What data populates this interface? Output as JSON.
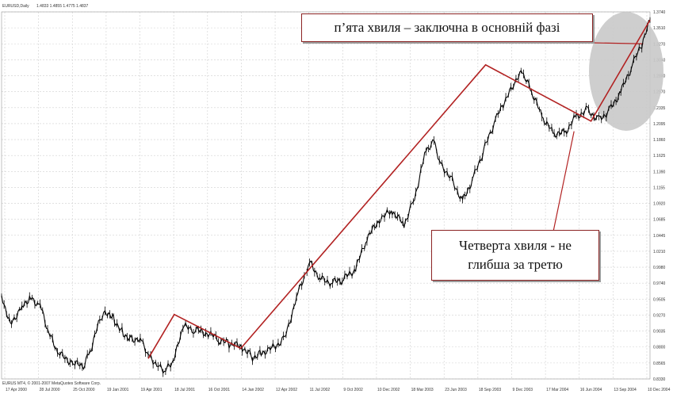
{
  "header": {
    "symbol": "EURUSD,Daily",
    "ohlc": "1.4833 1.4855 1.4775 1.4837"
  },
  "footer": {
    "copyright": "EURUS MT4, © 2001-2007 MetaQuotes Software Corp."
  },
  "annotations": {
    "wave5": "п’ята хвиля – заключна в основній фазі",
    "wave4_line1": "Четверта хвиля - не",
    "wave4_line2": "глибша за третю"
  },
  "colors": {
    "background": "#ffffff",
    "grid": "#d0d0d0",
    "price": "#000000",
    "wave_lines": "#b22222",
    "highlight_ellipse": "#c9c9c9"
  },
  "chart_data": {
    "type": "line",
    "title": "EURUSD,Daily",
    "xlabel": "",
    "ylabel": "",
    "x_tick_labels": [
      "17 Apr 2000",
      "28 Jul 2000",
      "25 Oct 2000",
      "19 Jan 2001",
      "19 Apr 2001",
      "18 Jul 2001",
      "16 Oct 2001",
      "14 Jan 2002",
      "12 Apr 2002",
      "11 Jul 2002",
      "9 Oct 2002",
      "10 Dec 2002",
      "18 Mar 2003",
      "23 Jun 2003",
      "18 Sep 2003",
      "9 Dec 2003",
      "17 Mar 2004",
      "16 Jun 2004",
      "13 Sep 2004",
      "10 Dec 2004"
    ],
    "y_tick_labels": [
      "1.3740",
      "1.3510",
      "1.3270",
      "1.3040",
      "1.2800",
      "1.2570",
      "1.2335",
      "1.2095",
      "1.1860",
      "1.1625",
      "1.1390",
      "1.1155",
      "1.0920",
      "1.0685",
      "1.0445",
      "1.0210",
      "0.9980",
      "0.9740",
      "0.9505",
      "0.9270",
      "0.9035",
      "0.8800",
      "0.8565",
      "0.8330"
    ],
    "ylim": [
      0.833,
      1.374
    ],
    "grid": true,
    "price_series": {
      "name": "EURUSD",
      "x": [
        "2000-04-17",
        "2000-05-10",
        "2000-06-10",
        "2000-06-30",
        "2000-07-28",
        "2000-08-20",
        "2000-09-15",
        "2000-10-25",
        "2000-11-20",
        "2000-12-10",
        "2001-01-05",
        "2001-01-19",
        "2001-02-10",
        "2001-03-05",
        "2001-04-01",
        "2001-04-19",
        "2001-05-10",
        "2001-06-05",
        "2001-06-25",
        "2001-07-18",
        "2001-08-10",
        "2001-09-10",
        "2001-10-16",
        "2001-11-15",
        "2001-12-10",
        "2002-01-14",
        "2002-02-10",
        "2002-03-05",
        "2002-04-12",
        "2002-05-10",
        "2002-06-10",
        "2002-07-11",
        "2002-08-10",
        "2002-09-10",
        "2002-10-09",
        "2002-11-10",
        "2002-12-10",
        "2003-01-15",
        "2003-02-15",
        "2003-03-18",
        "2003-04-15",
        "2003-05-15",
        "2003-06-05",
        "2003-06-23",
        "2003-07-20",
        "2003-08-20",
        "2003-09-18",
        "2003-10-15",
        "2003-11-15",
        "2003-12-09",
        "2004-01-05",
        "2004-01-25",
        "2004-02-15",
        "2004-03-17",
        "2004-04-15",
        "2004-05-15",
        "2004-06-16",
        "2004-07-15",
        "2004-08-15",
        "2004-09-13",
        "2004-10-15",
        "2004-11-15",
        "2004-12-10",
        "2004-12-28"
      ],
      "values": [
        0.956,
        0.915,
        0.939,
        0.953,
        0.942,
        0.9,
        0.87,
        0.856,
        0.851,
        0.878,
        0.925,
        0.933,
        0.92,
        0.9,
        0.89,
        0.895,
        0.87,
        0.852,
        0.845,
        0.862,
        0.91,
        0.905,
        0.9,
        0.89,
        0.885,
        0.88,
        0.865,
        0.872,
        0.88,
        0.9,
        0.96,
        1.005,
        0.98,
        0.975,
        0.98,
        0.995,
        1.04,
        1.07,
        1.08,
        1.06,
        1.1,
        1.17,
        1.185,
        1.15,
        1.13,
        1.095,
        1.13,
        1.17,
        1.215,
        1.24,
        1.27,
        1.285,
        1.26,
        1.22,
        1.195,
        1.195,
        1.22,
        1.23,
        1.215,
        1.23,
        1.26,
        1.3,
        1.33,
        1.362
      ]
    },
    "wave_segments": {
      "x": [
        "2001-05-10",
        "2001-07-18",
        "2002-01-10",
        "2003-10-20",
        "2004-07-25",
        "2004-12-28"
      ],
      "values": [
        0.863,
        0.928,
        0.878,
        1.296,
        1.213,
        1.362
      ]
    },
    "annotation_pointers": [
      {
        "label": "wave5",
        "to": {
          "x": "2004-12-10",
          "value": 1.327
        }
      },
      {
        "label": "wave4",
        "to": {
          "x": "2004-06-10",
          "value": 1.198
        }
      }
    ]
  }
}
